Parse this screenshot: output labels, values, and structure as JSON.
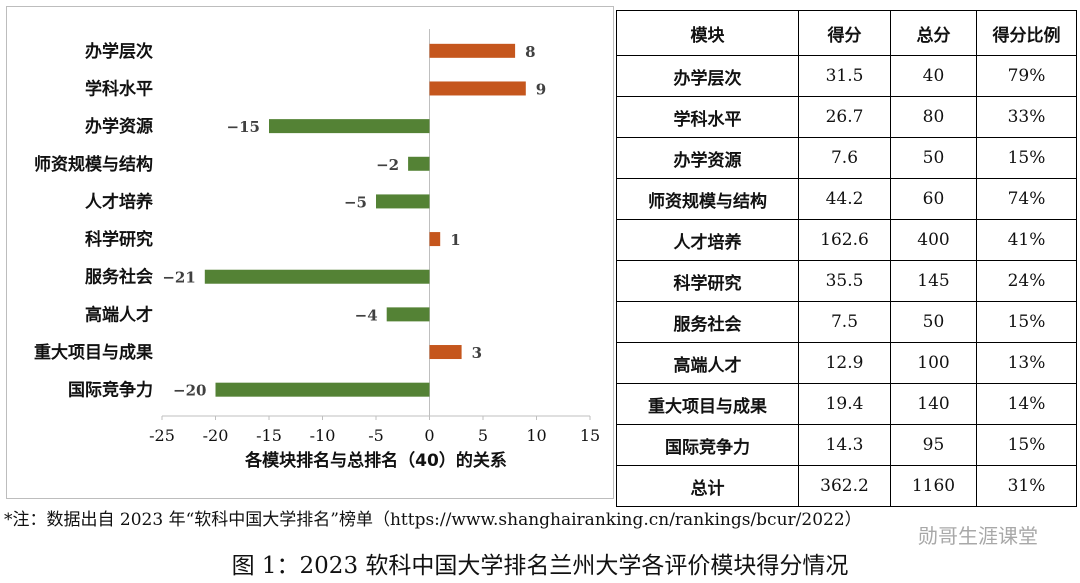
{
  "chart_data": {
    "type": "bar",
    "orientation": "horizontal",
    "categories": [
      "办学层次",
      "学科水平",
      "办学资源",
      "师资规模与结构",
      "人才培养",
      "科学研究",
      "服务社会",
      "高端人才",
      "重大项目与成果",
      "国际竞争力"
    ],
    "values": [
      8,
      9,
      -15,
      -2,
      -5,
      1,
      -21,
      -4,
      3,
      -20
    ],
    "value_labels": [
      "8",
      "9",
      "−15",
      "−2",
      "−5",
      "1",
      "−21",
      "−4",
      "3",
      "−20"
    ],
    "xlim": [
      -25,
      15
    ],
    "x_ticks": [
      -25,
      -20,
      -15,
      -10,
      -5,
      0,
      5,
      10,
      15
    ],
    "x_tick_labels": [
      "-25",
      "-20",
      "-15",
      "-10",
      "-5",
      "0",
      "5",
      "10",
      "15"
    ],
    "xlabel": "各模块排名与总排名（40）的关系",
    "ylabel": "",
    "title": "",
    "grid": false,
    "colors": {
      "positive": "#c5561d",
      "negative": "#548235"
    }
  },
  "table": {
    "headers": [
      "模块",
      "得分",
      "总分",
      "得分比例"
    ],
    "rows": [
      [
        "办学层次",
        "31.5",
        "40",
        "79%"
      ],
      [
        "学科水平",
        "26.7",
        "80",
        "33%"
      ],
      [
        "办学资源",
        "7.6",
        "50",
        "15%"
      ],
      [
        "师资规模与结构",
        "44.2",
        "60",
        "74%"
      ],
      [
        "人才培养",
        "162.6",
        "400",
        "41%"
      ],
      [
        "科学研究",
        "35.5",
        "145",
        "24%"
      ],
      [
        "服务社会",
        "7.5",
        "50",
        "15%"
      ],
      [
        "高端人才",
        "12.9",
        "100",
        "13%"
      ],
      [
        "重大项目与成果",
        "19.4",
        "140",
        "14%"
      ],
      [
        "国际竞争力",
        "14.3",
        "95",
        "15%"
      ],
      [
        "总计",
        "362.2",
        "1160",
        "31%"
      ]
    ]
  },
  "note": "*注：数据出自 2023 年“软科中国大学排名”榜单（https://www.shanghairanking.cn/rankings/bcur/2022）",
  "caption": "图 1：2023 软科中国大学排名兰州大学各评价模块得分情况",
  "watermark": "勋哥生涯课堂"
}
